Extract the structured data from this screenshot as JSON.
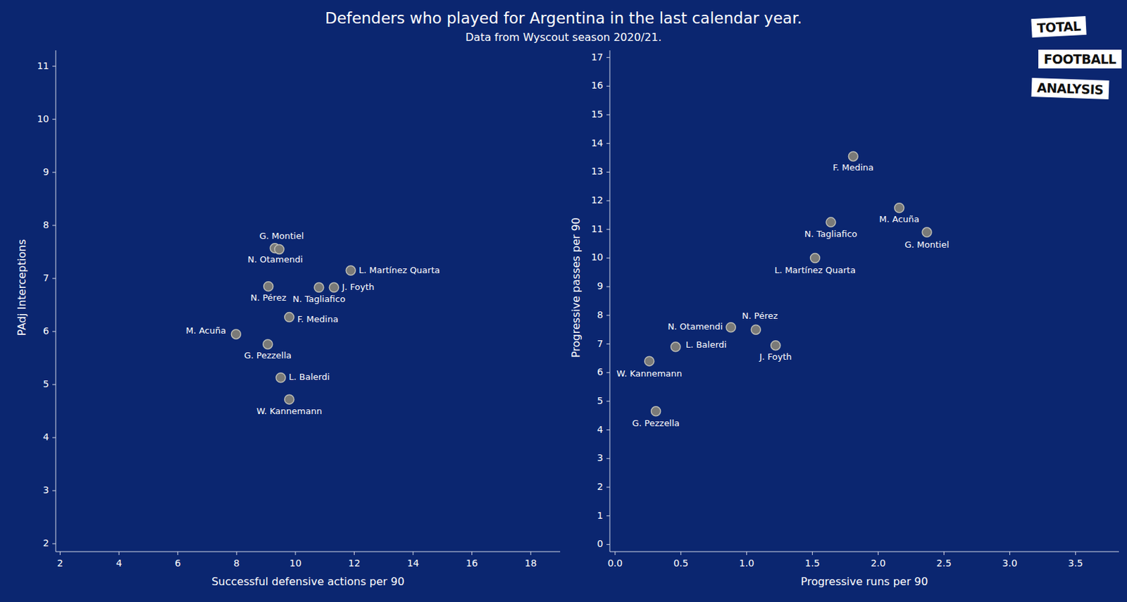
{
  "title": "Defenders who played for Argentina in the last calendar year.",
  "subtitle": "Data from Wyscout season 2020/21.",
  "logo": [
    "TOTAL",
    "FOOTBALL",
    "ANALYSIS"
  ],
  "chart_data": [
    {
      "type": "scatter",
      "x_label": "Successful defensive actions per 90",
      "y_label": "PAdj Interceptions",
      "color": "#7a7a78",
      "point_labels": [
        "G. Montiel",
        "N. Otamendi",
        "L. Martínez Quarta",
        "N. Pérez",
        "N. Tagliafico",
        "J. Foyth",
        "F. Medina",
        "M. Acuña",
        "G. Pezzella",
        "L. Balerdi",
        "W. Kannemann"
      ],
      "x": [
        9.3,
        9.45,
        11.88,
        9.08,
        10.8,
        11.31,
        9.79,
        7.98,
        9.06,
        9.5,
        9.79
      ],
      "values": [
        7.57,
        7.55,
        7.15,
        6.85,
        6.83,
        6.83,
        6.27,
        5.95,
        5.76,
        5.13,
        4.72
      ],
      "xlim": [
        1.85,
        19
      ],
      "ylim": [
        1.85,
        11.3
      ],
      "xticks": [
        2,
        4,
        6,
        8,
        10,
        12,
        14,
        16,
        18
      ],
      "yticks": [
        2,
        3,
        4,
        5,
        6,
        7,
        8,
        9,
        10,
        11
      ],
      "grid": false
    },
    {
      "type": "scatter",
      "x_label": "Progressive runs per 90",
      "y_label": "Progressive passes per 90",
      "color": "#7a7a78",
      "point_labels": [
        "F. Medina",
        "M. Acuña",
        "N. Tagliafico",
        "G. Montiel",
        "L. Martínez Quarta",
        "N. Otamendi",
        "N. Pérez",
        "J. Foyth",
        "L. Balerdi",
        "W. Kannemann",
        "G. Pezzella"
      ],
      "x": [
        1.81,
        2.16,
        1.64,
        2.37,
        1.52,
        0.88,
        1.07,
        1.22,
        0.46,
        0.26,
        0.31
      ],
      "values": [
        13.55,
        11.75,
        11.25,
        10.9,
        10.0,
        7.58,
        7.5,
        6.95,
        6.9,
        6.4,
        4.65
      ],
      "xlim": [
        -0.04,
        3.83
      ],
      "ylim": [
        -0.25,
        17.25
      ],
      "xticks": [
        {
          "value": 0,
          "label": "0.0"
        },
        0.5,
        {
          "value": 1,
          "label": "1.0"
        },
        1.5,
        {
          "value": 2,
          "label": "2.0"
        },
        2.5,
        {
          "value": 3,
          "label": "3.0"
        },
        3.5
      ],
      "yticks": [
        0,
        1,
        2,
        3,
        4,
        5,
        6,
        7,
        8,
        9,
        10,
        11,
        12,
        13,
        14,
        15,
        16,
        17
      ],
      "grid": false
    }
  ]
}
